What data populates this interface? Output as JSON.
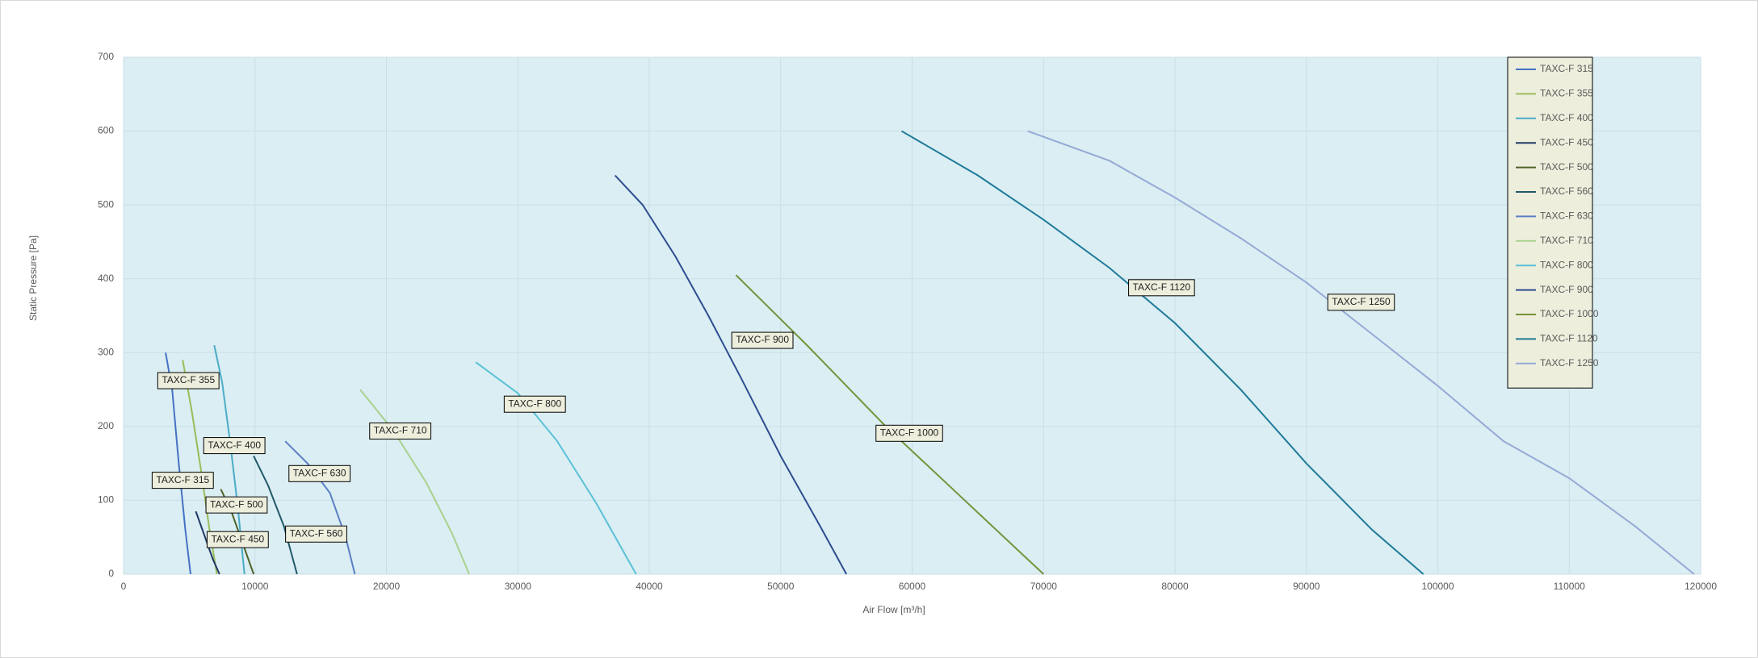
{
  "chart_data": {
    "type": "line",
    "x_label": "Air Flow [m³/h]",
    "y_label": "Static Pressure [Pa]",
    "xlim": [
      0,
      120000
    ],
    "ylim": [
      0,
      700
    ],
    "xticks": [
      0,
      10000,
      20000,
      30000,
      40000,
      50000,
      60000,
      70000,
      80000,
      90000,
      100000,
      110000,
      120000
    ],
    "yticks": [
      0,
      100,
      200,
      300,
      400,
      500,
      600,
      700
    ],
    "grid": true,
    "legend": "top-right",
    "series": [
      {
        "name": "TAXC-F 315",
        "color": "#4472c4",
        "x": [
          3200,
          3700,
          4200,
          4700,
          5100
        ],
        "values": [
          300,
          250,
          150,
          60,
          0
        ]
      },
      {
        "name": "TAXC-F 355",
        "color": "#9bbb59",
        "x": [
          4500,
          5200,
          5900,
          6500,
          7100
        ],
        "values": [
          290,
          220,
          140,
          65,
          0
        ]
      },
      {
        "name": "TAXC-F 400",
        "color": "#4bacc6",
        "x": [
          6900,
          7500,
          8100,
          8700,
          9200
        ],
        "values": [
          310,
          260,
          180,
          90,
          0
        ]
      },
      {
        "name": "TAXC-F 450",
        "color": "#1f3864",
        "x": [
          5500,
          6200,
          6800,
          7300
        ],
        "values": [
          85,
          50,
          20,
          0
        ]
      },
      {
        "name": "TAXC-F 500",
        "color": "#4f6228",
        "x": [
          7400,
          8200,
          9000,
          9900
        ],
        "values": [
          115,
          85,
          45,
          0
        ]
      },
      {
        "name": "TAXC-F 560",
        "color": "#215968",
        "x": [
          9900,
          11000,
          12200,
          13200
        ],
        "values": [
          160,
          120,
          65,
          0
        ]
      },
      {
        "name": "TAXC-F 630",
        "color": "#5b7fc4",
        "x": [
          12300,
          14000,
          15700,
          16900,
          17600
        ],
        "values": [
          180,
          150,
          110,
          50,
          0
        ]
      },
      {
        "name": "TAXC-F 710",
        "color": "#a9d18e",
        "x": [
          18000,
          20500,
          23000,
          25000,
          26300
        ],
        "values": [
          250,
          195,
          125,
          55,
          0
        ]
      },
      {
        "name": "TAXC-F 800",
        "color": "#5ac1d6",
        "x": [
          26800,
          30000,
          33000,
          36000,
          39000
        ],
        "values": [
          287,
          245,
          180,
          95,
          0
        ]
      },
      {
        "name": "TAXC-F 900",
        "color": "#2e4d8f",
        "x": [
          37400,
          39500,
          42000,
          44500,
          47000,
          50000,
          53000,
          55000
        ],
        "values": [
          540,
          500,
          430,
          350,
          265,
          160,
          65,
          0
        ]
      },
      {
        "name": "TAXC-F 1000",
        "color": "#77933c",
        "x": [
          46600,
          52000,
          58000,
          64000,
          70000
        ],
        "values": [
          405,
          310,
          200,
          100,
          0
        ]
      },
      {
        "name": "TAXC-F 1120",
        "color": "#1f7a99",
        "x": [
          59200,
          65000,
          70000,
          75000,
          80000,
          85000,
          90000,
          95000,
          98900
        ],
        "values": [
          600,
          540,
          480,
          415,
          340,
          250,
          150,
          60,
          0
        ]
      },
      {
        "name": "TAXC-F 1250",
        "color": "#95a9d6",
        "x": [
          68800,
          75000,
          80000,
          85000,
          90000,
          95000,
          100000,
          105000,
          110000,
          115000,
          119500
        ],
        "values": [
          600,
          560,
          510,
          455,
          395,
          325,
          255,
          180,
          130,
          65,
          0
        ]
      }
    ]
  }
}
